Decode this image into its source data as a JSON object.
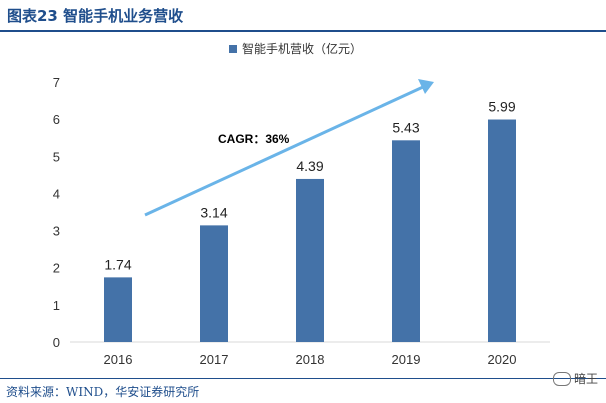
{
  "header": {
    "title": "图表23 智能手机业务营收"
  },
  "footer": {
    "source": "资料来源：WIND，华安证券研究所",
    "watermark": "暗王"
  },
  "chart_data": {
    "type": "bar",
    "categories": [
      "2016",
      "2017",
      "2018",
      "2019",
      "2020"
    ],
    "series": [
      {
        "name": "智能手机营收（亿元）",
        "values": [
          1.74,
          3.14,
          4.39,
          5.43,
          5.99
        ]
      }
    ],
    "data_labels": [
      "1.74",
      "3.14",
      "4.39",
      "5.43",
      "5.99"
    ],
    "ylim": [
      0,
      7
    ],
    "yticks": [
      "0",
      "1",
      "2",
      "3",
      "4",
      "5",
      "6",
      "7"
    ],
    "grid": false,
    "legend_position": "top",
    "annotation": "CAGR：36%",
    "colors": {
      "bar": "#4472a8",
      "arrow": "#6ab4e8",
      "title": "#1f4e8c"
    }
  }
}
